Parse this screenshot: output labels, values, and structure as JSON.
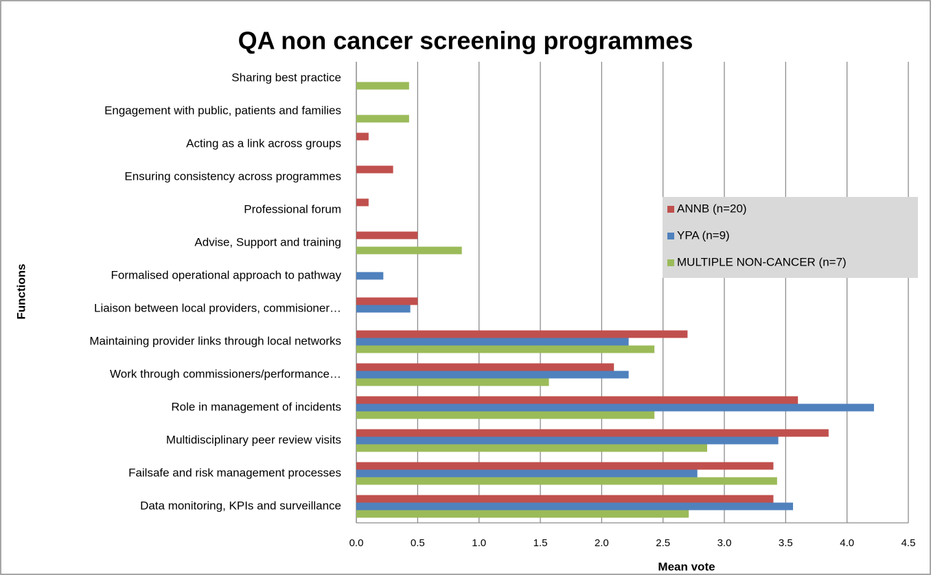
{
  "chart_data": {
    "type": "hbar",
    "title": "QA non cancer screening programmes",
    "x_label": "Mean vote",
    "y_label": "Functions",
    "categories": [
      "Sharing best practice",
      "Engagement with public, patients and families",
      "Acting as a link across groups",
      "Ensuring consistency across programmes",
      "Professional forum",
      "Advise, Support and training",
      "Formalised operational approach to pathway",
      "Liaison between local providers, commisioner…",
      "Maintaining provider links through local networks",
      "Work through commissioners/performance…",
      "Role in management of incidents",
      "Multidisciplinary peer review visits",
      "Failsafe and risk management processes",
      "Data monitoring, KPIs and surveillance"
    ],
    "series": [
      {
        "name": "ANNB (n=20)",
        "color": "#c0504d",
        "values": [
          0,
          0,
          0.1,
          0.3,
          0.1,
          0.5,
          0,
          0.5,
          2.7,
          2.1,
          3.6,
          3.85,
          3.4,
          3.4
        ]
      },
      {
        "name": "YPA (n=9)",
        "color": "#4f81bd",
        "values": [
          0,
          0,
          0,
          0,
          0,
          0,
          0.22,
          0.44,
          2.22,
          2.22,
          4.22,
          3.44,
          2.78,
          3.56
        ]
      },
      {
        "name": "MULTIPLE NON-CANCER (n=7)",
        "color": "#9bbb59",
        "values": [
          0.43,
          0.43,
          0,
          0,
          0,
          0.86,
          0,
          0,
          2.43,
          1.57,
          2.43,
          2.86,
          3.43,
          2.71
        ]
      }
    ],
    "xlim": [
      0,
      4.5
    ],
    "xticks": [
      {
        "value": 0,
        "label": "0.0"
      },
      0.5,
      {
        "value": 1,
        "label": "1.0"
      },
      1.5,
      {
        "value": 2,
        "label": "2.0"
      },
      2.5,
      {
        "value": 3,
        "label": "3.0"
      },
      3.5,
      {
        "value": 4,
        "label": "4.0"
      },
      4.5
    ],
    "grid": true,
    "legend_position": "right"
  }
}
